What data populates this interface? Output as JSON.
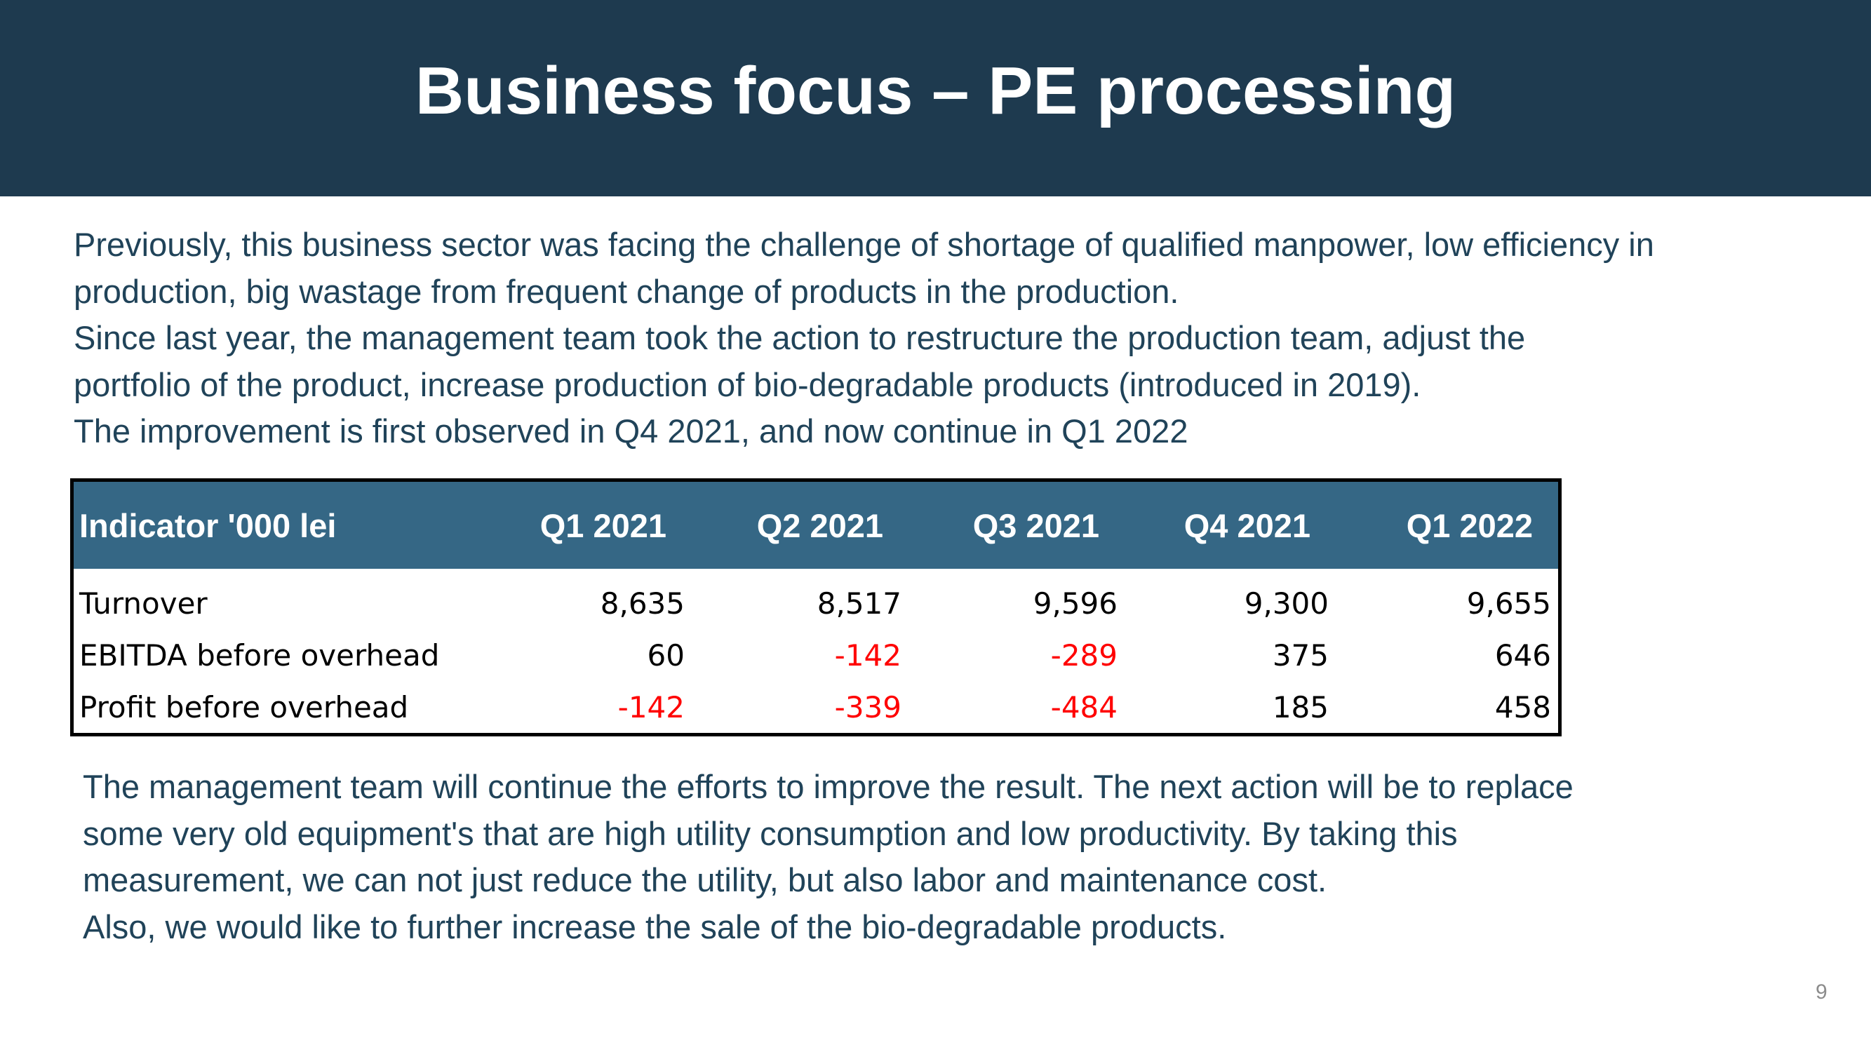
{
  "slide": {
    "title": "Business focus – PE processing",
    "page_number": "9",
    "intro_lines": [
      "Previously, this business sector was facing the challenge of shortage of qualified manpower, low efficiency in",
      "production, big wastage from frequent change of products in the production.",
      "Since last year, the management team took the action to restructure the production team, adjust the",
      "portfolio of the product, increase production of bio-degradable products (introduced in 2019).",
      "The improvement is first observed in Q4 2021, and now continue in Q1 2022"
    ],
    "outro_lines": [
      "The management team will continue the efforts to improve the result. The next action will be to replace",
      "some very old equipment's that are high utility consumption and low productivity. By taking this",
      "measurement, we can not just reduce the utility, but also labor and maintenance cost.",
      "Also, we would like to further increase the sale of the bio-degradable products."
    ]
  },
  "table": {
    "headers": [
      "Indicator '000 lei",
      "Q1 2021",
      "Q2 2021",
      "Q3 2021",
      "Q4 2021",
      "Q1 2022"
    ],
    "rows": [
      {
        "label": "Turnover",
        "values": [
          "8,635",
          "8,517",
          "9,596",
          "9,300",
          "9,655"
        ]
      },
      {
        "label": "EBITDA before overhead",
        "values": [
          "60",
          "-142",
          "-289",
          "375",
          "646"
        ]
      },
      {
        "label": "Profit before overhead",
        "values": [
          "-142",
          "-339",
          "-484",
          "185",
          "458"
        ]
      }
    ]
  },
  "colors": {
    "banner": "#1e3a4f",
    "table_header": "#356785",
    "body_text": "#204359",
    "negative": "#ff0000"
  }
}
